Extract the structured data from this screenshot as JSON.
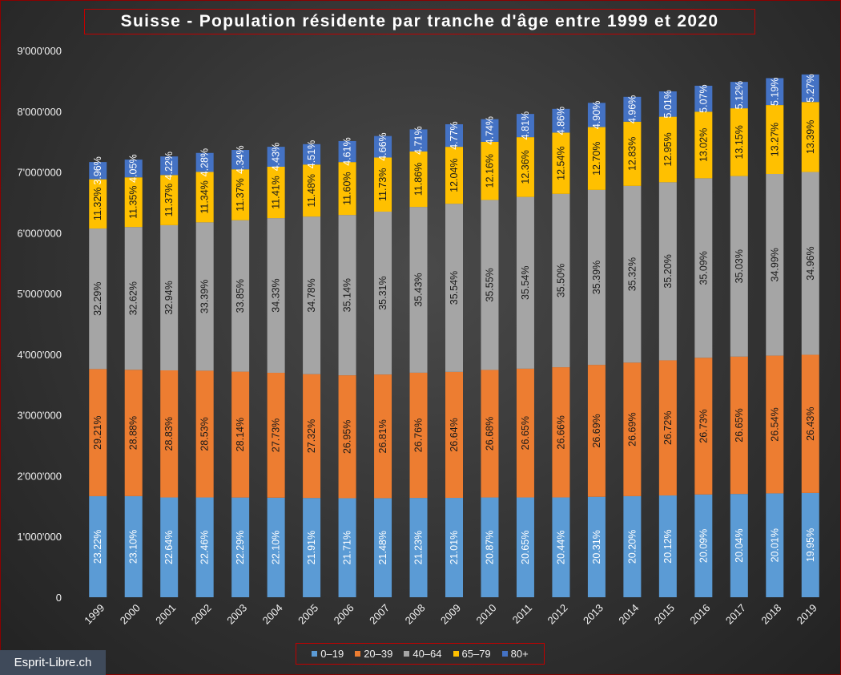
{
  "chart_data": {
    "type": "bar",
    "stacked": true,
    "title": "Suisse - Population résidente par tranche d'âge entre 1999 et 2020",
    "xlabel": "",
    "ylabel": "",
    "ylim": [
      0,
      9000000
    ],
    "ytick_labels": [
      "0",
      "1'000'000",
      "2'000'000",
      "3'000'000",
      "4'000'000",
      "5'000'000",
      "6'000'000",
      "7'000'000",
      "8'000'000",
      "9'000'000"
    ],
    "ytick_values": [
      0,
      1000000,
      2000000,
      3000000,
      4000000,
      5000000,
      6000000,
      7000000,
      8000000,
      9000000
    ],
    "categories": [
      "1999",
      "2000",
      "2001",
      "2002",
      "2003",
      "2004",
      "2005",
      "2006",
      "2007",
      "2008",
      "2009",
      "2010",
      "2011",
      "2012",
      "2013",
      "2014",
      "2015",
      "2016",
      "2017",
      "2018",
      "2019"
    ],
    "totals": [
      7164000,
      7204000,
      7256000,
      7314000,
      7364000,
      7415000,
      7459000,
      7509000,
      7593000,
      7702000,
      7786000,
      7870000,
      7955000,
      8039000,
      8139000,
      8237000,
      8327000,
      8420000,
      8484000,
      8545000,
      8606000
    ],
    "legend_position": "bottom",
    "grid": false,
    "series": [
      {
        "name": "0–19",
        "color": "#5b9bd5",
        "percent_labels": [
          "23.22%",
          "23.10%",
          "22.64%",
          "22.46%",
          "22.29%",
          "22.10%",
          "21.91%",
          "21.71%",
          "21.48%",
          "21.23%",
          "21.01%",
          "20.87%",
          "20.65%",
          "20.44%",
          "20.31%",
          "20.20%",
          "20.12%",
          "20.09%",
          "20.04%",
          "20.01%",
          "19.95%"
        ]
      },
      {
        "name": "20–39",
        "color": "#ed7d31",
        "percent_labels": [
          "29.21%",
          "28.88%",
          "28.83%",
          "28.53%",
          "28.14%",
          "27.73%",
          "27.32%",
          "26.95%",
          "26.81%",
          "26.76%",
          "26.64%",
          "26.68%",
          "26.65%",
          "26.66%",
          "26.69%",
          "26.69%",
          "26.72%",
          "26.73%",
          "26.65%",
          "26.54%",
          "26.43%"
        ]
      },
      {
        "name": "40–64",
        "color": "#a5a5a5",
        "percent_labels": [
          "32.29%",
          "32.62%",
          "32.94%",
          "33.39%",
          "33.85%",
          "34.33%",
          "34.78%",
          "35.14%",
          "35.31%",
          "35.43%",
          "35.54%",
          "35.55%",
          "35.54%",
          "35.50%",
          "35.39%",
          "35.32%",
          "35.20%",
          "35.09%",
          "35.03%",
          "34.99%",
          "34.96%"
        ]
      },
      {
        "name": "65–79",
        "color": "#ffc000",
        "percent_labels": [
          "11.32%",
          "11.35%",
          "11.37%",
          "11.34%",
          "11.37%",
          "11.41%",
          "11.48%",
          "11.60%",
          "11.73%",
          "11.86%",
          "12.04%",
          "12.16%",
          "12.36%",
          "12.54%",
          "12.70%",
          "12.83%",
          "12.95%",
          "13.02%",
          "13.15%",
          "13.27%",
          "13.39%"
        ]
      },
      {
        "name": "80+",
        "color": "#4472c4",
        "percent_labels": [
          "3.96%",
          "4.05%",
          "4.22%",
          "4.28%",
          "4.34%",
          "4.43%",
          "4.51%",
          "4.61%",
          "4.66%",
          "4.71%",
          "4.77%",
          "4.74%",
          "4.81%",
          "4.86%",
          "4.90%",
          "4.96%",
          "5.01%",
          "5.07%",
          "5.12%",
          "5.19%",
          "5.27%"
        ]
      }
    ]
  },
  "watermark": "Esprit-Libre.ch"
}
